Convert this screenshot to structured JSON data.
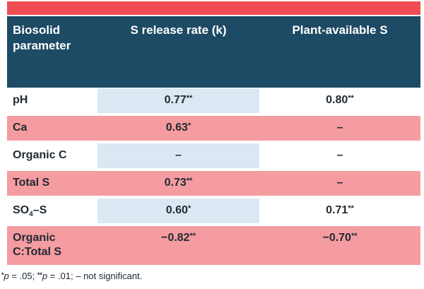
{
  "colors": {
    "accent_red": "#EF4D56",
    "header_navy": "#1D4A64",
    "row_pink": "#F59CA0",
    "cell_blue": "#DCE7F4",
    "header_text": "#FFFFFF",
    "body_text": "#1F2A33"
  },
  "table": {
    "header": {
      "col1": "Biosolid parameter",
      "col2": "S release rate (k)",
      "col3": "Plant-available S"
    },
    "rows": [
      {
        "param": "pH",
        "k": "0.77",
        "k_sig": "**",
        "pa": "0.80",
        "pa_sig": "**"
      },
      {
        "param": "Ca",
        "k": "0.63",
        "k_sig": "*",
        "pa": "–",
        "pa_sig": ""
      },
      {
        "param": "Organic C",
        "k": "–",
        "k_sig": "",
        "pa": "–",
        "pa_sig": ""
      },
      {
        "param": "Total S",
        "k": "0.73",
        "k_sig": "**",
        "pa": "–",
        "pa_sig": ""
      },
      {
        "param_pre": "SO",
        "param_sub": "4",
        "param_post": "–S",
        "k": "0.60",
        "k_sig": "*",
        "pa": "0.71",
        "pa_sig": "**"
      },
      {
        "param_line1": "Organic",
        "param_line2": "C:Total S",
        "k": "−0.82",
        "k_sig": "**",
        "pa": "−0.70",
        "pa_sig": "**"
      }
    ],
    "footnote": {
      "sig1": "*",
      "p1": "p",
      "t1": " = .05; ",
      "sig2": "**",
      "p2": "p",
      "t2": " = .01; – not significant."
    }
  }
}
